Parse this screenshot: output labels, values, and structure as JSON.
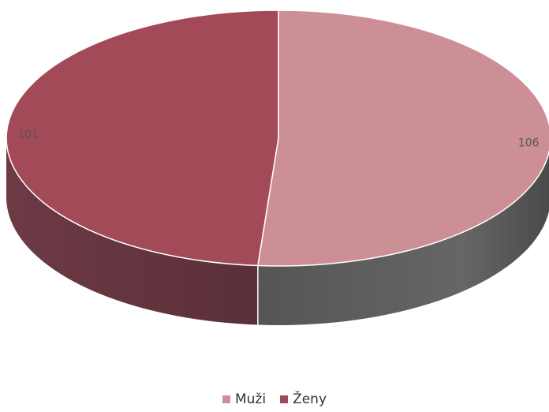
{
  "chart_data": {
    "type": "pie",
    "style": "3d",
    "legend_position": "bottom",
    "series": [
      {
        "name": "",
        "categories": [
          "Muži",
          "Ženy"
        ],
        "values": [
          106,
          101
        ],
        "labels": [
          "106",
          "101"
        ],
        "colors": [
          "#cc8f95",
          "#a34a58"
        ]
      }
    ]
  },
  "legend": {
    "items": [
      {
        "label": "Muži",
        "color": "#cc8f95"
      },
      {
        "label": "Ženy",
        "color": "#a34a58"
      }
    ]
  }
}
